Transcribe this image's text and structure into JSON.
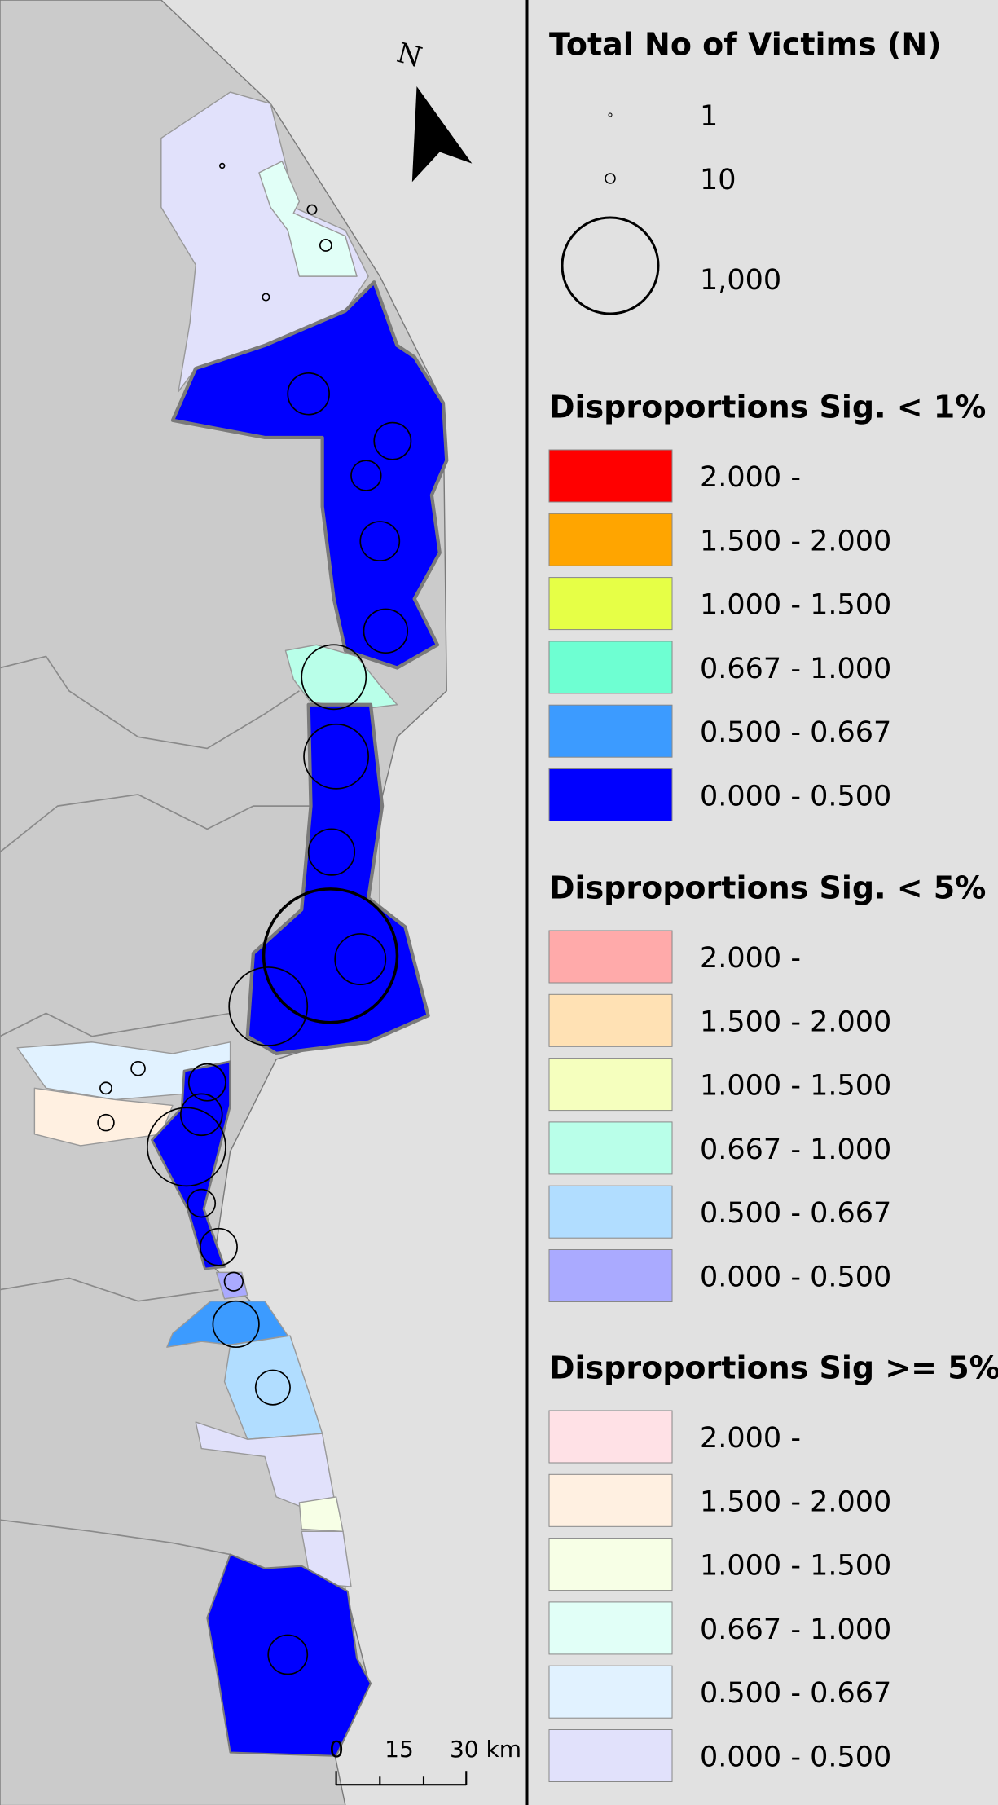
{
  "north_arrow": "N",
  "scale_bar": {
    "labels": [
      "0",
      "15",
      "30 km"
    ]
  },
  "legend": {
    "size": {
      "title": "Total No of Victims (N)",
      "items": [
        "1",
        "10",
        "1,000"
      ]
    },
    "groups": [
      {
        "title": "Disproportions Sig. < 1%",
        "items": [
          {
            "label": "2.000 -",
            "color": "#ff0000"
          },
          {
            "label": "1.500 - 2.000",
            "color": "#ffa500"
          },
          {
            "label": "1.000 - 1.500",
            "color": "#e6ff46"
          },
          {
            "label": "0.667 - 1.000",
            "color": "#6effd2"
          },
          {
            "label": "0.500 - 0.667",
            "color": "#3c9bff"
          },
          {
            "label": "0.000 - 0.500",
            "color": "#0000ff"
          }
        ]
      },
      {
        "title": "Disproportions Sig. < 5%",
        "items": [
          {
            "label": "2.000 -",
            "color": "#ffaaaa"
          },
          {
            "label": "1.500 - 2.000",
            "color": "#ffe1b4"
          },
          {
            "label": "1.000 - 1.500",
            "color": "#f5ffbe"
          },
          {
            "label": "0.667 - 1.000",
            "color": "#b9ffe9"
          },
          {
            "label": "0.500 - 0.667",
            "color": "#b1ddff"
          },
          {
            "label": "0.000 - 0.500",
            "color": "#aaaaff"
          }
        ]
      },
      {
        "title": "Disproportions Sig >= 5%",
        "items": [
          {
            "label": "2.000 -",
            "color": "#ffe1e6"
          },
          {
            "label": "1.500 - 2.000",
            "color": "#fff0e1"
          },
          {
            "label": "1.000 - 1.500",
            "color": "#f7ffe6"
          },
          {
            "label": "0.667 - 1.000",
            "color": "#e1fff7"
          },
          {
            "label": "0.500 - 0.667",
            "color": "#e1f2ff"
          },
          {
            "label": "0.000 - 0.500",
            "color": "#e1e1fb"
          }
        ]
      }
    ]
  }
}
